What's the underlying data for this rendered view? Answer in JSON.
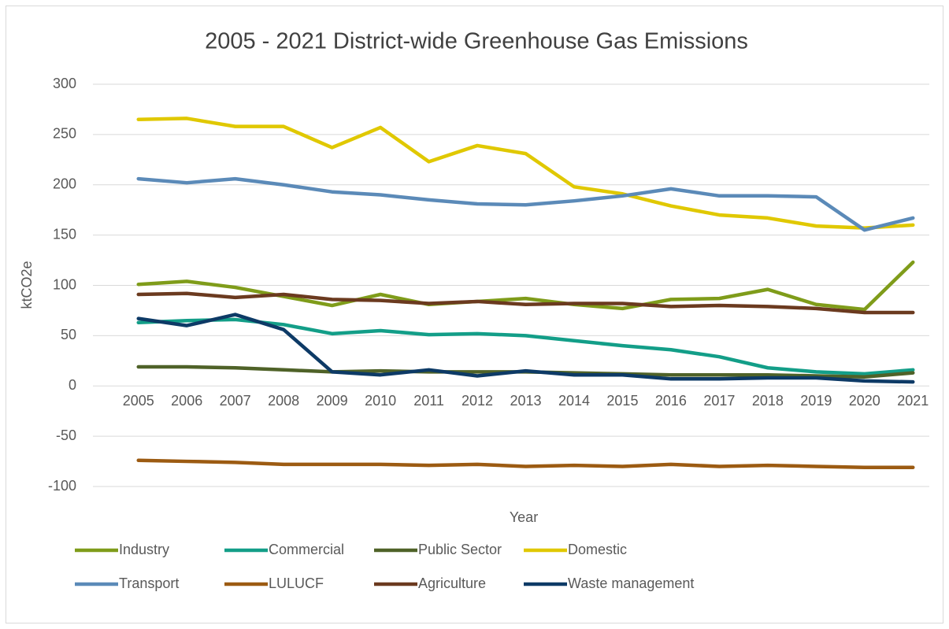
{
  "chart_data": {
    "type": "line",
    "title": "2005 - 2021 District-wide Greenhouse Gas Emissions",
    "x_label": "Year",
    "y_label": "ktCO2e",
    "categories": [
      "2005",
      "2006",
      "2007",
      "2008",
      "2009",
      "2010",
      "2011",
      "2012",
      "2013",
      "2014",
      "2015",
      "2016",
      "2017",
      "2018",
      "2019",
      "2020",
      "2021"
    ],
    "ylim": [
      -100,
      300
    ],
    "yticks": [
      -100,
      -50,
      0,
      50,
      100,
      150,
      200,
      250,
      300
    ],
    "grid": true,
    "legend": "bottom",
    "series": [
      {
        "name": "Industry",
        "color": "#7f9c1a",
        "values": [
          101,
          104,
          98,
          89,
          80,
          91,
          81,
          84,
          87,
          81,
          77,
          86,
          87,
          96,
          81,
          76,
          123
        ]
      },
      {
        "name": "Commercial",
        "color": "#139e88",
        "values": [
          63,
          65,
          66,
          61,
          52,
          55,
          51,
          52,
          50,
          45,
          40,
          36,
          29,
          18,
          14,
          12,
          16
        ]
      },
      {
        "name": "Public Sector",
        "color": "#4f6228",
        "values": [
          19,
          19,
          18,
          16,
          14,
          15,
          14,
          14,
          14,
          13,
          12,
          11,
          11,
          11,
          10,
          9,
          13
        ]
      },
      {
        "name": "Domestic",
        "color": "#e0c800",
        "values": [
          265,
          266,
          258,
          258,
          237,
          257,
          223,
          239,
          231,
          198,
          191,
          179,
          170,
          167,
          159,
          157,
          160
        ]
      },
      {
        "name": "Transport",
        "color": "#5b8ab8",
        "values": [
          206,
          202,
          206,
          200,
          193,
          190,
          185,
          181,
          180,
          184,
          189,
          196,
          189,
          189,
          188,
          155,
          167
        ]
      },
      {
        "name": "LULUCF",
        "color": "#9c5b12",
        "values": [
          -74,
          -75,
          -76,
          -78,
          -78,
          -78,
          -79,
          -78,
          -80,
          -79,
          -80,
          -78,
          -80,
          -79,
          -80,
          -81,
          -81
        ]
      },
      {
        "name": "Agriculture",
        "color": "#6b3a1f",
        "values": [
          91,
          92,
          88,
          91,
          86,
          85,
          82,
          84,
          81,
          82,
          82,
          79,
          80,
          79,
          77,
          73,
          73
        ]
      },
      {
        "name": "Waste management",
        "color": "#0d3a66",
        "values": [
          67,
          60,
          71,
          56,
          14,
          11,
          16,
          10,
          15,
          11,
          11,
          7,
          7,
          8,
          8,
          5,
          4
        ]
      }
    ]
  }
}
